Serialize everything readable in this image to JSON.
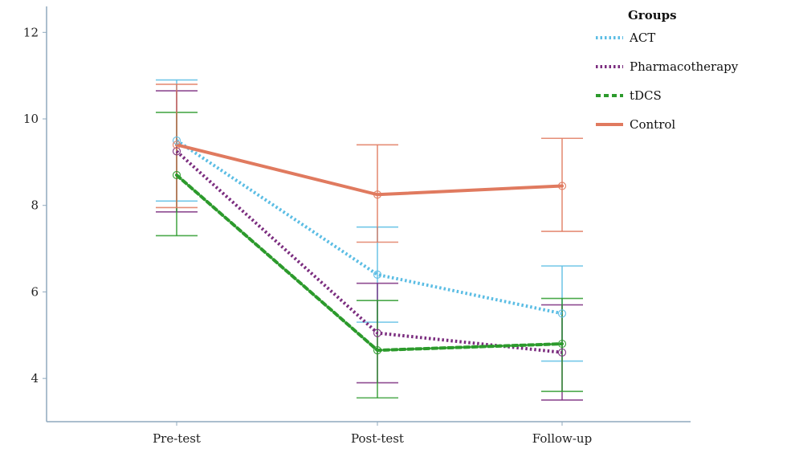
{
  "chart_data": {
    "type": "line",
    "title": "",
    "xlabel": "",
    "ylabel": "",
    "categories": [
      "Pre-test",
      "Post-test",
      "Follow-up"
    ],
    "y_ticks": [
      4,
      6,
      8,
      10,
      12
    ],
    "ylim": [
      3.0,
      12.6
    ],
    "grid": false,
    "legend": {
      "title": "Groups",
      "placement": "top-right"
    },
    "series": [
      {
        "name": "ACT",
        "color": "#5bbde4",
        "style": "dotted",
        "values": [
          9.5,
          6.4,
          5.5
        ],
        "ci_low": [
          8.1,
          5.3,
          4.4
        ],
        "ci_high": [
          10.9,
          7.5,
          6.6
        ]
      },
      {
        "name": "Pharmacotherapy",
        "color": "#7b2d7f",
        "style": "dotted",
        "values": [
          9.25,
          5.05,
          4.6
        ],
        "ci_low": [
          7.85,
          3.9,
          3.5
        ],
        "ci_high": [
          10.65,
          6.2,
          5.7
        ]
      },
      {
        "name": "tDCS",
        "color": "#2c9a2c",
        "style": "dashed",
        "values": [
          8.7,
          4.65,
          4.8
        ],
        "ci_low": [
          7.3,
          3.55,
          3.7
        ],
        "ci_high": [
          10.15,
          5.8,
          5.85
        ]
      },
      {
        "name": "Control",
        "color": "#e07a5f",
        "style": "solid",
        "values": [
          9.4,
          8.25,
          8.45
        ],
        "ci_low": [
          7.95,
          7.15,
          7.4
        ],
        "ci_high": [
          10.8,
          9.4,
          9.55
        ]
      }
    ]
  }
}
